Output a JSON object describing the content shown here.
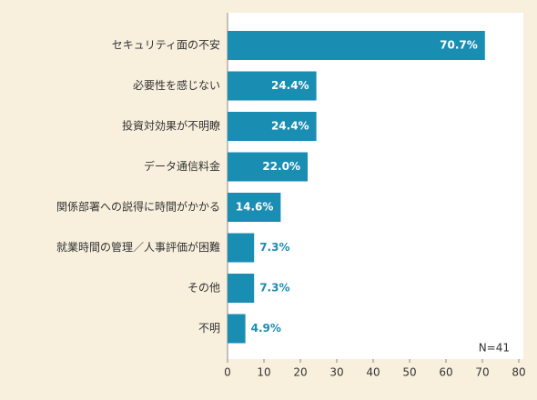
{
  "chart_data": {
    "type": "bar",
    "orientation": "horizontal",
    "categories": [
      "セキュリティ面の不安",
      "必要性を感じない",
      "投資対効果が不明瞭",
      "データ通信料金",
      "関係部署への説得に時間がかかる",
      "就業時間の管理／人事評価が困難",
      "その他",
      "不明"
    ],
    "values": [
      70.7,
      24.4,
      24.4,
      22.0,
      14.6,
      7.3,
      7.3,
      4.9
    ],
    "value_labels": [
      "70.7%",
      "24.4%",
      "24.4%",
      "22.0%",
      "14.6%",
      "7.3%",
      "7.3%",
      "4.9%"
    ],
    "color": "#1a8db3",
    "xlim": [
      0,
      80
    ],
    "xticks": [
      0,
      10,
      20,
      30,
      40,
      50,
      60,
      70,
      80
    ],
    "annotation": "N=41"
  }
}
